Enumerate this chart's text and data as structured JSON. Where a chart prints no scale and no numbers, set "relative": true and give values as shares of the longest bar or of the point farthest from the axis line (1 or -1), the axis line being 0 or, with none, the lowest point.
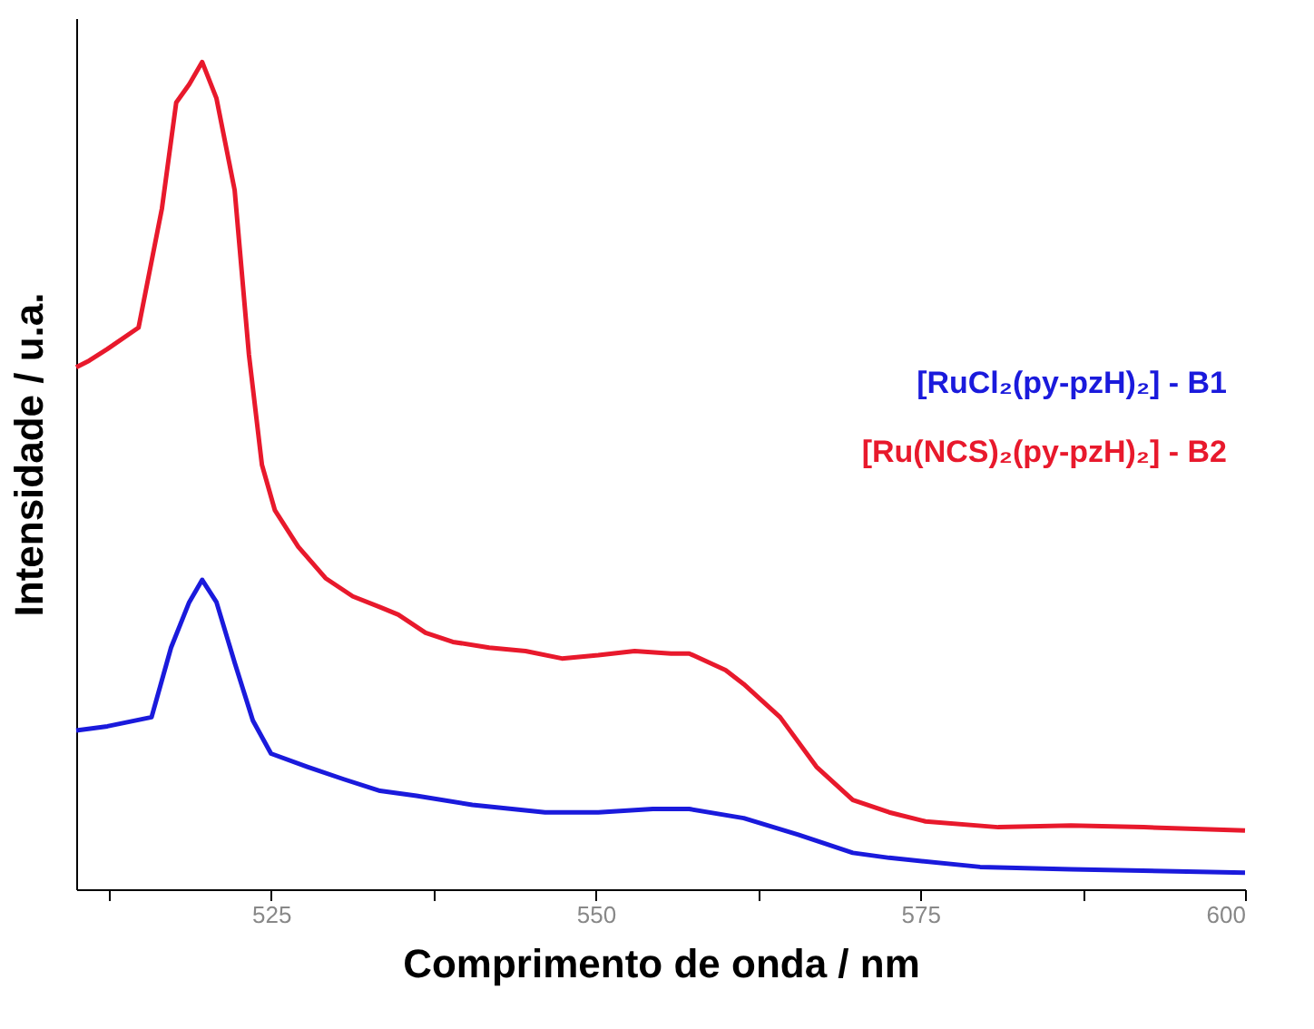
{
  "chart_data": {
    "type": "line",
    "relative": true,
    "xlabel": "Comprimento de onda / nm",
    "ylabel": "Intensidade / u.a.",
    "xlim": [
      510,
      600
    ],
    "xticks": [
      {
        "value": 512.5,
        "label": null
      },
      525,
      {
        "value": 537.5,
        "label": null
      },
      550,
      {
        "value": 562.5,
        "label": null
      },
      575,
      {
        "value": 587.5,
        "label": null
      },
      600
    ],
    "grid": false,
    "legend": "right",
    "marker": "none",
    "line_style": "solid",
    "series": [
      {
        "name": "[RuCl₂(py-pzH)₂] - B1",
        "color": "#1a1adc",
        "x": [
          510,
          512.4,
          515.8,
          517.3,
          518.7,
          519.7,
          520.8,
          522.2,
          523.6,
          525,
          527.8,
          530.6,
          533.4,
          536.2,
          540.5,
          546.1,
          550.2,
          554.4,
          557.2,
          561.4,
          565.6,
          569.8,
          572.6,
          579.6,
          586.6,
          600
        ],
        "values": [
          0.192,
          0.197,
          0.208,
          0.292,
          0.347,
          0.374,
          0.347,
          0.274,
          0.204,
          0.164,
          0.148,
          0.133,
          0.119,
          0.113,
          0.102,
          0.093,
          0.093,
          0.097,
          0.097,
          0.086,
          0.066,
          0.044,
          0.038,
          0.027,
          0.024,
          0.02
        ]
      },
      {
        "name": "[Ru(NCS)₂(py-pzH)₂] - B2",
        "color": "#e8192c",
        "x": [
          510,
          511,
          512.4,
          514.8,
          516.6,
          517.7,
          518.7,
          519.7,
          520.8,
          522.2,
          523.3,
          524.3,
          525.3,
          527.1,
          529.2,
          531.3,
          533.4,
          534.8,
          536.9,
          539,
          541.8,
          544.6,
          547.4,
          550.2,
          553,
          555.8,
          557.2,
          560,
          561.4,
          564.2,
          567,
          569.8,
          572.6,
          575.4,
          581,
          586.6,
          592.2,
          600
        ],
        "values": [
          0.631,
          0.639,
          0.653,
          0.679,
          0.823,
          0.951,
          0.973,
          1.0,
          0.956,
          0.845,
          0.646,
          0.513,
          0.458,
          0.414,
          0.376,
          0.354,
          0.341,
          0.332,
          0.31,
          0.299,
          0.292,
          0.288,
          0.279,
          0.283,
          0.288,
          0.285,
          0.285,
          0.265,
          0.248,
          0.208,
          0.148,
          0.108,
          0.093,
          0.082,
          0.075,
          0.077,
          0.075,
          0.071
        ]
      }
    ]
  }
}
